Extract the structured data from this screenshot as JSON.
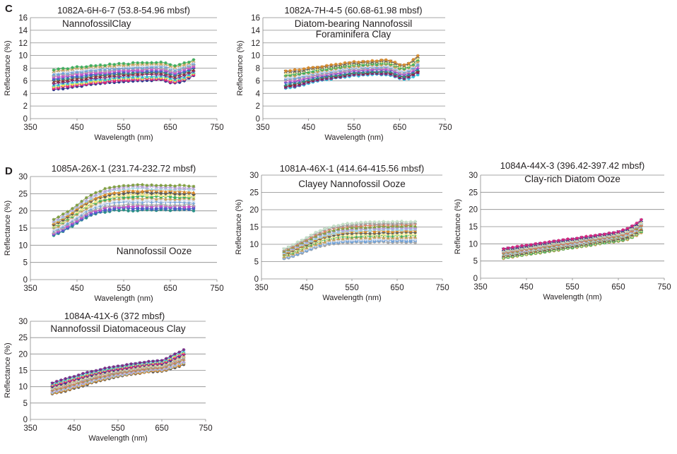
{
  "colors": {
    "series": [
      "#2b3a8f",
      "#d6247c",
      "#e8e24a",
      "#35bfd8",
      "#7b2a84",
      "#8e2b2b",
      "#2a8f88",
      "#4b5ec8",
      "#c94fc8",
      "#a8a8a8",
      "#6fa0d6",
      "#cfd8e8",
      "#c8a25a",
      "#3cae5f",
      "#f0e68c",
      "#5a5a5a",
      "#d88a2a",
      "#9ad0e0",
      "#b89fd8",
      "#7f9f3f",
      "#e07a5f",
      "#9b9b9b",
      "#c4e0c8",
      "#d0b080"
    ],
    "text": "#231f20",
    "grid": "#8a8a8a"
  },
  "panel_letters": [
    "C",
    "D"
  ],
  "chart_data": [
    {
      "type": "line",
      "title": "1082A-6H-6-7 (53.8-54.96 mbsf)",
      "annotation": "NannofossilClay",
      "xlabel": "Wavelength (nm)",
      "ylabel": "Reflectance (%)",
      "xlim": [
        350,
        750
      ],
      "ylim": [
        0,
        16
      ],
      "xticks": [
        "350",
        "450",
        "550",
        "650",
        "750"
      ],
      "yticks": [
        "0",
        "2",
        "4",
        "6",
        "8",
        "10",
        "12",
        "14",
        "16"
      ],
      "grid": "horizontal",
      "x": [
        400,
        410,
        420,
        430,
        440,
        450,
        460,
        470,
        480,
        490,
        500,
        510,
        520,
        530,
        540,
        550,
        560,
        570,
        580,
        590,
        600,
        610,
        620,
        630,
        640,
        650,
        660,
        670,
        680,
        690,
        700
      ],
      "envelope_low": [
        4.6,
        4.7,
        4.8,
        4.9,
        5.0,
        5.1,
        5.2,
        5.3,
        5.4,
        5.5,
        5.6,
        5.6,
        5.7,
        5.8,
        5.8,
        5.9,
        5.9,
        6.0,
        6.0,
        6.0,
        6.1,
        6.1,
        6.1,
        6.1,
        6.0,
        5.7,
        5.6,
        5.8,
        6.0,
        6.4,
        6.8
      ],
      "envelope_high": [
        7.8,
        7.9,
        8.0,
        8.0,
        8.1,
        8.2,
        8.2,
        8.3,
        8.4,
        8.4,
        8.5,
        8.5,
        8.6,
        8.6,
        8.7,
        8.7,
        8.7,
        8.8,
        8.8,
        8.8,
        8.9,
        8.9,
        8.9,
        8.9,
        8.8,
        8.5,
        8.4,
        8.6,
        8.8,
        9.0,
        9.3
      ]
    },
    {
      "type": "line",
      "title": "1082A-7H-4-5 (60.68-61.98 mbsf)",
      "annotation": "Diatom-bearing Nannofossil\nForaminifera Clay",
      "xlabel": "Wavelength (nm)",
      "ylabel": "Reflectance (%)",
      "xlim": [
        350,
        750
      ],
      "ylim": [
        0,
        16
      ],
      "xticks": [
        "350",
        "450",
        "550",
        "650",
        "750"
      ],
      "yticks": [
        "0",
        "2",
        "4",
        "6",
        "8",
        "10",
        "12",
        "14",
        "16"
      ],
      "grid": "horizontal",
      "x": [
        400,
        410,
        420,
        430,
        440,
        450,
        460,
        470,
        480,
        490,
        500,
        510,
        520,
        530,
        540,
        550,
        560,
        570,
        580,
        590,
        600,
        610,
        620,
        630,
        640,
        650,
        660,
        670,
        680,
        690
      ],
      "envelope_low": [
        4.8,
        4.9,
        5.0,
        5.2,
        5.4,
        5.6,
        5.8,
        6.0,
        6.1,
        6.2,
        6.3,
        6.4,
        6.5,
        6.6,
        6.7,
        6.8,
        6.8,
        6.9,
        6.9,
        7.0,
        7.0,
        7.0,
        7.0,
        6.9,
        6.6,
        6.3,
        6.2,
        6.4,
        6.7,
        7.0
      ],
      "envelope_high": [
        7.6,
        7.6,
        7.7,
        7.8,
        7.9,
        8.0,
        8.1,
        8.2,
        8.3,
        8.4,
        8.5,
        8.6,
        8.7,
        8.8,
        8.9,
        9.0,
        9.0,
        9.1,
        9.1,
        9.2,
        9.2,
        9.3,
        9.3,
        9.2,
        8.9,
        8.6,
        8.5,
        8.8,
        9.3,
        10.0
      ]
    },
    {
      "type": "line",
      "title": "1085A-26X-1 (231.74-232.72 mbsf)",
      "annotation": "Nannofossil Ooze",
      "xlabel": "Wavelength (nm)",
      "ylabel": "Reflectance (%)",
      "xlim": [
        350,
        750
      ],
      "ylim": [
        0,
        30
      ],
      "xticks": [
        "350",
        "450",
        "550",
        "650",
        "750"
      ],
      "yticks": [
        "0",
        "5",
        "10",
        "15",
        "20",
        "25",
        "30"
      ],
      "grid": "horizontal",
      "x": [
        400,
        410,
        420,
        430,
        440,
        450,
        460,
        470,
        480,
        490,
        500,
        510,
        520,
        530,
        540,
        550,
        560,
        570,
        580,
        590,
        600,
        610,
        620,
        630,
        640,
        650,
        660,
        670,
        680,
        690,
        700
      ],
      "envelope_low": [
        12.8,
        13.3,
        14.0,
        14.8,
        15.6,
        16.4,
        17.2,
        18.0,
        18.6,
        19.1,
        19.5,
        19.8,
        20.0,
        20.1,
        20.2,
        20.2,
        20.2,
        20.2,
        20.2,
        20.2,
        20.2,
        20.2,
        20.2,
        20.2,
        20.2,
        20.2,
        20.2,
        20.2,
        20.2,
        20.2,
        20.2
      ],
      "envelope_high": [
        17.5,
        18.2,
        19.0,
        19.9,
        20.8,
        21.8,
        22.8,
        23.7,
        24.5,
        25.2,
        25.8,
        26.3,
        26.7,
        27.0,
        27.2,
        27.4,
        27.5,
        27.6,
        27.6,
        27.6,
        27.6,
        27.6,
        27.5,
        27.5,
        27.4,
        27.4,
        27.3,
        27.3,
        27.2,
        27.2,
        27.1
      ]
    },
    {
      "type": "line",
      "title": "1081A-46X-1 (414.64-415.56 mbsf)",
      "annotation": "Clayey Nannofossil Ooze",
      "xlabel": "Wavelength (nm)",
      "ylabel": "Reflectance (%)",
      "xlim": [
        350,
        750
      ],
      "ylim": [
        0,
        30
      ],
      "xticks": [
        "350",
        "450",
        "550",
        "650",
        "750"
      ],
      "yticks": [
        "0",
        "5",
        "10",
        "15",
        "20",
        "25",
        "30"
      ],
      "grid": "horizontal",
      "x": [
        400,
        410,
        420,
        430,
        440,
        450,
        460,
        470,
        480,
        490,
        500,
        510,
        520,
        530,
        540,
        550,
        560,
        570,
        580,
        590,
        600,
        610,
        620,
        630,
        640,
        650,
        660,
        670,
        680,
        690
      ],
      "envelope_low": [
        5.8,
        6.1,
        6.5,
        7.0,
        7.5,
        8.0,
        8.5,
        9.0,
        9.4,
        9.7,
        10.0,
        10.2,
        10.3,
        10.4,
        10.5,
        10.5,
        10.5,
        10.5,
        10.5,
        10.5,
        10.6,
        10.6,
        10.6,
        10.6,
        10.6,
        10.6,
        10.6,
        10.6,
        10.6,
        10.6
      ],
      "envelope_high": [
        8.8,
        9.3,
        9.9,
        10.6,
        11.3,
        12.0,
        12.7,
        13.4,
        14.0,
        14.5,
        14.9,
        15.3,
        15.6,
        15.8,
        16.0,
        16.1,
        16.2,
        16.3,
        16.3,
        16.4,
        16.4,
        16.4,
        16.5,
        16.5,
        16.5,
        16.5,
        16.6,
        16.6,
        16.6,
        16.6
      ]
    },
    {
      "type": "line",
      "title": "1084A-44X-3 (396.42-397.42 mbsf)",
      "annotation": "Clay-rich Diatom Ooze",
      "xlabel": "Wavelength (nm)",
      "ylabel": "Reflectance (%)",
      "xlim": [
        350,
        750
      ],
      "ylim": [
        0,
        30
      ],
      "xticks": [
        "350",
        "450",
        "550",
        "650",
        "750"
      ],
      "yticks": [
        "0",
        "5",
        "10",
        "15",
        "20",
        "25",
        "30"
      ],
      "grid": "horizontal",
      "x": [
        400,
        410,
        420,
        430,
        440,
        450,
        460,
        470,
        480,
        490,
        500,
        510,
        520,
        530,
        540,
        550,
        560,
        570,
        580,
        590,
        600,
        610,
        620,
        630,
        640,
        650,
        660,
        670,
        680,
        690,
        700
      ],
      "envelope_low": [
        5.8,
        6.0,
        6.2,
        6.4,
        6.6,
        6.8,
        7.0,
        7.2,
        7.4,
        7.6,
        7.8,
        8.0,
        8.2,
        8.4,
        8.6,
        8.8,
        9.0,
        9.2,
        9.4,
        9.6,
        9.8,
        10.0,
        10.2,
        10.4,
        10.6,
        10.8,
        11.0,
        11.3,
        11.8,
        12.5,
        13.3
      ],
      "envelope_high": [
        8.6,
        8.8,
        9.0,
        9.2,
        9.4,
        9.6,
        9.8,
        10.0,
        10.2,
        10.4,
        10.6,
        10.8,
        11.0,
        11.2,
        11.4,
        11.5,
        11.7,
        11.9,
        12.1,
        12.3,
        12.5,
        12.7,
        12.9,
        13.1,
        13.3,
        13.6,
        14.0,
        14.5,
        15.2,
        16.0,
        17.0
      ]
    },
    {
      "type": "line",
      "title": "1084A-41X-6 (372 mbsf)",
      "annotation": "Nannofossil Diatomaceous Clay",
      "xlabel": "Wavelength (nm)",
      "ylabel": "Reflectance (%)",
      "xlim": [
        350,
        750
      ],
      "ylim": [
        0,
        30
      ],
      "xticks": [
        "350",
        "450",
        "550",
        "650",
        "750"
      ],
      "yticks": [
        "0",
        "5",
        "10",
        "15",
        "20",
        "25",
        "30"
      ],
      "grid": "horizontal",
      "x": [
        400,
        410,
        420,
        430,
        440,
        450,
        460,
        470,
        480,
        490,
        500,
        510,
        520,
        530,
        540,
        550,
        560,
        570,
        580,
        590,
        600,
        610,
        620,
        630,
        640,
        650,
        660,
        670,
        680,
        690,
        700
      ],
      "envelope_low": [
        7.8,
        8.1,
        8.4,
        8.7,
        9.1,
        9.5,
        9.9,
        10.3,
        10.7,
        11.1,
        11.5,
        11.9,
        12.2,
        12.5,
        12.8,
        13.1,
        13.3,
        13.5,
        13.7,
        13.9,
        14.1,
        14.3,
        14.5,
        14.6,
        14.7,
        14.7,
        15.0,
        15.4,
        15.8,
        16.3,
        16.8
      ],
      "envelope_high": [
        11.2,
        11.6,
        12.0,
        12.4,
        12.8,
        13.2,
        13.6,
        14.0,
        14.4,
        14.7,
        15.0,
        15.3,
        15.6,
        15.9,
        16.1,
        16.3,
        16.5,
        16.7,
        16.9,
        17.1,
        17.3,
        17.5,
        17.7,
        17.8,
        17.9,
        18.0,
        18.6,
        19.3,
        20.0,
        20.6,
        21.2
      ]
    }
  ]
}
